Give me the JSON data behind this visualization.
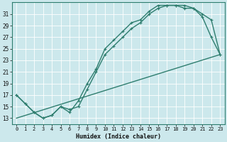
{
  "title": "",
  "xlabel": "Humidex (Indice chaleur)",
  "bg_color": "#cce8ec",
  "grid_color": "#b0d8de",
  "line_color": "#2e7d6e",
  "xlim": [
    -0.5,
    23.5
  ],
  "ylim": [
    12,
    33
  ],
  "xticks": [
    0,
    1,
    2,
    3,
    4,
    5,
    6,
    7,
    8,
    9,
    10,
    11,
    12,
    13,
    14,
    15,
    16,
    17,
    18,
    19,
    20,
    21,
    22,
    23
  ],
  "yticks": [
    13,
    15,
    17,
    19,
    21,
    23,
    25,
    27,
    29,
    31
  ],
  "line1_x": [
    0,
    1,
    2,
    3,
    4,
    5,
    6,
    7,
    8,
    9,
    10,
    11,
    12,
    13,
    14,
    15,
    16,
    17,
    18,
    19,
    20,
    21,
    22,
    23
  ],
  "line1_y": [
    17,
    15.5,
    14,
    13,
    13.5,
    15,
    14.5,
    15,
    18,
    21,
    24,
    25.5,
    27,
    28.5,
    29.5,
    31,
    32,
    32.5,
    32.5,
    32,
    32,
    30.5,
    27,
    24
  ],
  "line2_x": [
    0,
    1,
    2,
    3,
    4,
    5,
    6,
    7,
    8,
    9,
    10,
    11,
    12,
    13,
    14,
    15,
    16,
    17,
    18,
    19,
    20,
    21,
    22,
    23
  ],
  "line2_y": [
    17,
    15.5,
    14,
    13,
    13.5,
    15,
    14,
    16,
    19,
    21.5,
    25,
    26.5,
    28,
    29.5,
    30,
    31.5,
    32.5,
    32.5,
    32.5,
    32.5,
    32,
    31,
    30,
    24
  ],
  "line3_x": [
    0,
    23
  ],
  "line3_y": [
    13,
    24
  ]
}
